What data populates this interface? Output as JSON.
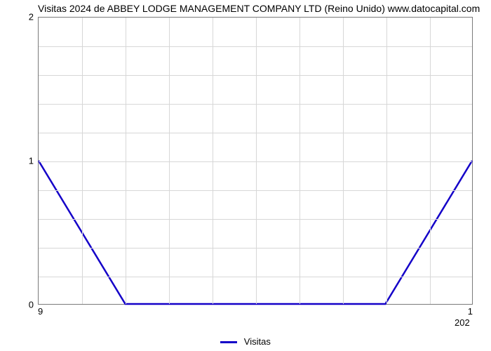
{
  "chart": {
    "type": "line",
    "title": "Visitas 2024 de ABBEY LODGE MANAGEMENT COMPANY LTD (Reino Unido) www.datocapital.com",
    "title_fontsize": 14,
    "background_color": "#ffffff",
    "border_color": "#7a7a7a",
    "grid_color": "#d7d7d7",
    "series": {
      "label": "Visitas",
      "color": "#1400c8",
      "line_width": 2.5,
      "x": [
        0,
        1,
        2,
        3,
        4,
        5,
        6,
        7,
        8,
        9,
        10
      ],
      "y": [
        1,
        0.5,
        0,
        0,
        0,
        0,
        0,
        0,
        0,
        0.5,
        1
      ]
    },
    "yaxis": {
      "lim": [
        0,
        2
      ],
      "ticks": [
        0,
        1,
        2
      ],
      "minor_count_between": 4
    },
    "xaxis": {
      "lim": [
        0,
        10
      ],
      "ticks": [
        0,
        1,
        2,
        3,
        4,
        5,
        6,
        7,
        8,
        9,
        10
      ],
      "left_label": "9",
      "right_label": "1",
      "secondary_right_label": "202"
    },
    "legend_position": "bottom-center"
  }
}
